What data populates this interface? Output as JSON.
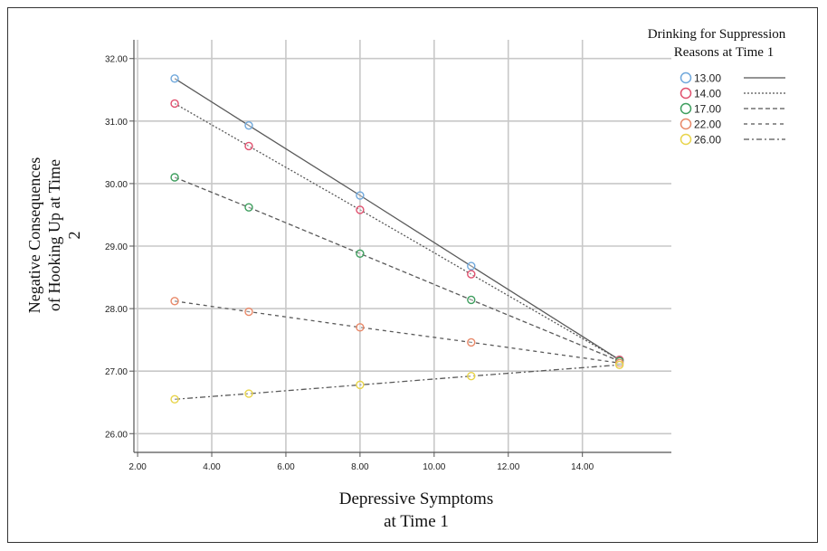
{
  "chart_data": {
    "type": "line",
    "title": "",
    "xlabel_lines": [
      "Depressive Symptoms",
      "at Time 1"
    ],
    "ylabel_lines": [
      "Negative Consequences",
      "of Hooking Up at Time",
      "2"
    ],
    "xlim": [
      1.9,
      16.4
    ],
    "ylim": [
      25.7,
      32.3
    ],
    "xticks": [
      2,
      4,
      6,
      8,
      10,
      12,
      14
    ],
    "xtick_labels": [
      "2.00",
      "4.00",
      "6.00",
      "8.00",
      "10.00",
      "12.00",
      "14.00"
    ],
    "yticks": [
      26,
      27,
      28,
      29,
      30,
      31,
      32
    ],
    "ytick_labels": [
      "26.00",
      "27.00",
      "28.00",
      "29.00",
      "30.00",
      "31.00",
      "32.00"
    ],
    "grid": true,
    "legend": {
      "title_lines": [
        "Drinking for Suppression",
        "Reasons at Time 1"
      ],
      "placement": "top-right"
    },
    "x": [
      3,
      5,
      8,
      11,
      15
    ],
    "series": [
      {
        "name": "13.00",
        "color": "#6fa8dc",
        "dash": "solid",
        "values": [
          31.68,
          30.93,
          29.81,
          28.68,
          27.18
        ]
      },
      {
        "name": "14.00",
        "color": "#e0506e",
        "dash": "dotted",
        "values": [
          31.28,
          30.6,
          29.58,
          28.55,
          27.18
        ]
      },
      {
        "name": "17.00",
        "color": "#3e9e5e",
        "dash": "dashed",
        "values": [
          30.1,
          29.62,
          28.88,
          28.14,
          27.16
        ]
      },
      {
        "name": "22.00",
        "color": "#e88868",
        "dash": "dash-short",
        "values": [
          28.12,
          27.95,
          27.7,
          27.46,
          27.13
        ]
      },
      {
        "name": "26.00",
        "color": "#e8d44a",
        "dash": "dash-dot",
        "values": [
          26.55,
          26.64,
          26.78,
          26.92,
          27.1
        ]
      }
    ]
  }
}
